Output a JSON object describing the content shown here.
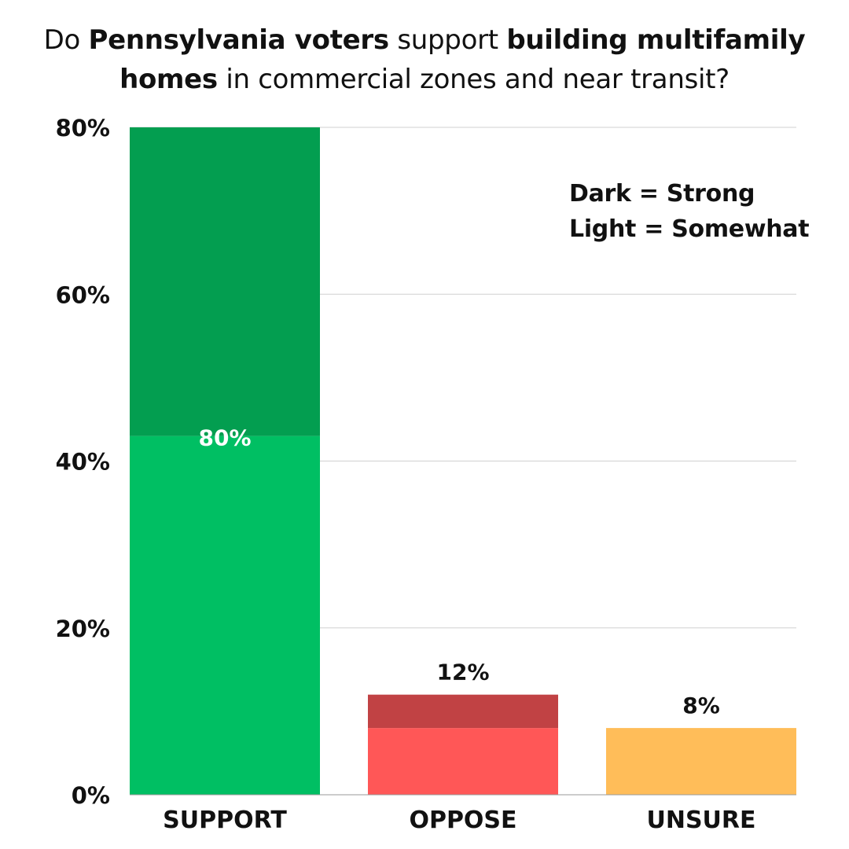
{
  "title": {
    "line1": [
      {
        "text": "Do ",
        "bold": false
      },
      {
        "text": "Pennsylvania voters",
        "bold": true
      },
      {
        "text": " support ",
        "bold": false
      },
      {
        "text": "building  multifamily",
        "bold": true
      }
    ],
    "line2": [
      {
        "text": "homes",
        "bold": true
      },
      {
        "text": " in commercial zones and near transit?",
        "bold": false
      }
    ]
  },
  "legend_note": {
    "dark": "Dark = Strong",
    "light": "Light = Somewhat"
  },
  "chart_data": {
    "type": "bar",
    "stacked": true,
    "categories": [
      "SUPPORT",
      "OPPOSE",
      "UNSURE"
    ],
    "series": [
      {
        "name": "Somewhat",
        "values": [
          43,
          8,
          8
        ]
      },
      {
        "name": "Strong",
        "values": [
          37,
          4,
          0
        ]
      }
    ],
    "totals": [
      80,
      12,
      8
    ],
    "data_labels": [
      "80%",
      "12%",
      "8%"
    ],
    "y_ticks": [
      "0%",
      "20%",
      "40%",
      "60%",
      "80%"
    ],
    "y_tick_values": [
      0,
      20,
      40,
      60,
      80
    ],
    "ylim": [
      0,
      80
    ],
    "grid": true,
    "colors": {
      "SUPPORT": {
        "Strong": "#039E50",
        "Somewhat": "#00BF63"
      },
      "OPPOSE": {
        "Strong": "#C14244",
        "Somewhat": "#FF5757"
      },
      "UNSURE": {
        "Strong": "#FFBD59",
        "Somewhat": "#FFBD59"
      },
      "data_label_inside": "#ffffff",
      "data_label_outside": "#111111",
      "grid": "#d0d0d0",
      "axis": "#9a9a9a"
    }
  }
}
